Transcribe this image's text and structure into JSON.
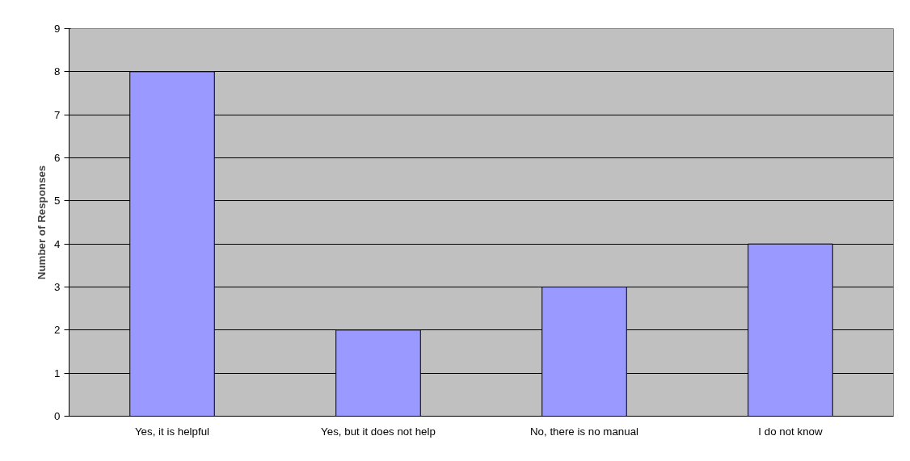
{
  "chart_data": {
    "type": "bar",
    "categories": [
      "Yes, it is helpful",
      "Yes, but it does not help",
      "No, there is no manual",
      "I do not know"
    ],
    "values": [
      8,
      2,
      3,
      4
    ],
    "color": "#9999ff",
    "ylabel": "Number of Responses",
    "ylim": [
      0,
      9
    ],
    "yticks": [
      0,
      1,
      2,
      3,
      4,
      5,
      6,
      7,
      8,
      9
    ],
    "grid": "y"
  }
}
